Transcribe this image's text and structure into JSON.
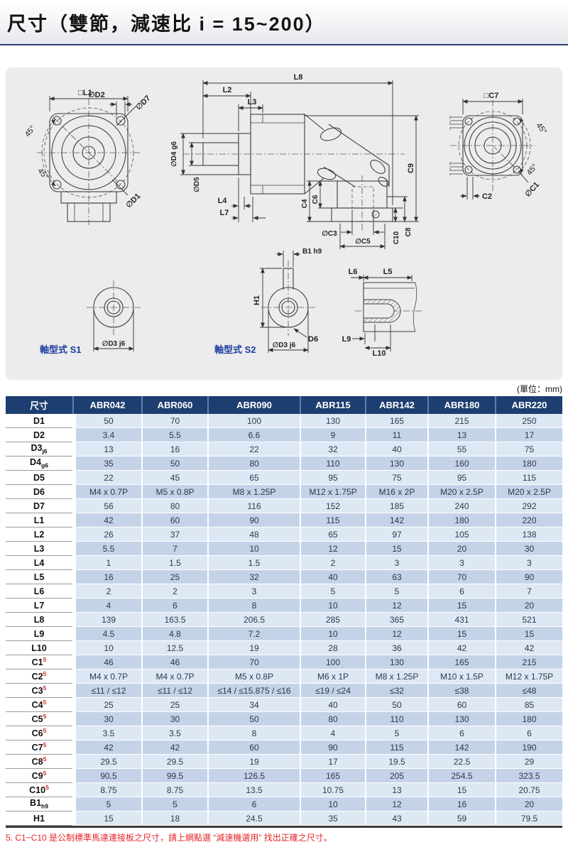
{
  "page": {
    "title": "尺寸（雙節，減速比 i = 15~200）",
    "unit_note": "(單位：mm)",
    "footnote": "5. C1~C10 是公制標準馬達連接板之尺寸，請上網點選 “減速機選用” 找出正確之尺寸。"
  },
  "drawing": {
    "captions": {
      "s1": "軸型式 S1",
      "s2": "軸型式 S2"
    },
    "labels": {
      "l1sq": "□L1",
      "d2": "∅D2",
      "d7": "∅D7",
      "a45a": "45°",
      "a45b": "45°",
      "d1": "∅D1",
      "l8": "L8",
      "l2": "L2",
      "l3": "L3",
      "d4": "∅D4 g6",
      "d5": "∅D5",
      "l4": "L4",
      "l7": "L7",
      "c4": "C4",
      "c6": "C6",
      "c3": "∅C3",
      "c5": "∅C5",
      "c9": "C9",
      "c10": "C10",
      "c8": "C8",
      "c7sq": "□C7",
      "a45c": "45°",
      "a45d": "45°",
      "c2": "C2",
      "c1": "∅C1",
      "b1": "B1 h9",
      "h1": "H1",
      "d6": "D6",
      "d3s1": "∅D3 j6",
      "d3s2": "∅D3 j6",
      "l6": "L6",
      "l5": "L5",
      "l9": "L9",
      "l10": "L10"
    }
  },
  "table": {
    "header": [
      "尺寸",
      "ABR042",
      "ABR060",
      "ABR090",
      "ABR115",
      "ABR142",
      "ABR180",
      "ABR220"
    ],
    "rows": [
      {
        "label": "D1",
        "values": [
          "50",
          "70",
          "100",
          "130",
          "165",
          "215",
          "250"
        ]
      },
      {
        "label": "D2",
        "values": [
          "3.4",
          "5.5",
          "6.6",
          "9",
          "11",
          "13",
          "17"
        ]
      },
      {
        "label": "D3",
        "sub": "j6",
        "values": [
          "13",
          "16",
          "22",
          "32",
          "40",
          "55",
          "75"
        ]
      },
      {
        "label": "D4",
        "sub": "g6",
        "values": [
          "35",
          "50",
          "80",
          "110",
          "130",
          "160",
          "180"
        ]
      },
      {
        "label": "D5",
        "values": [
          "22",
          "45",
          "65",
          "95",
          "75",
          "95",
          "115"
        ]
      },
      {
        "label": "D6",
        "values": [
          "M4 x 0.7P",
          "M5 x 0.8P",
          "M8 x 1.25P",
          "M12 x 1.75P",
          "M16 x 2P",
          "M20 x 2.5P",
          "M20 x 2.5P"
        ]
      },
      {
        "label": "D7",
        "values": [
          "56",
          "80",
          "116",
          "152",
          "185",
          "240",
          "292"
        ]
      },
      {
        "label": "L1",
        "values": [
          "42",
          "60",
          "90",
          "115",
          "142",
          "180",
          "220"
        ]
      },
      {
        "label": "L2",
        "values": [
          "26",
          "37",
          "48",
          "65",
          "97",
          "105",
          "138"
        ]
      },
      {
        "label": "L3",
        "values": [
          "5.5",
          "7",
          "10",
          "12",
          "15",
          "20",
          "30"
        ]
      },
      {
        "label": "L4",
        "values": [
          "1",
          "1.5",
          "1.5",
          "2",
          "3",
          "3",
          "3"
        ]
      },
      {
        "label": "L5",
        "values": [
          "16",
          "25",
          "32",
          "40",
          "63",
          "70",
          "90"
        ]
      },
      {
        "label": "L6",
        "values": [
          "2",
          "2",
          "3",
          "5",
          "5",
          "6",
          "7"
        ]
      },
      {
        "label": "L7",
        "values": [
          "4",
          "6",
          "8",
          "10",
          "12",
          "15",
          "20"
        ]
      },
      {
        "label": "L8",
        "values": [
          "139",
          "163.5",
          "206.5",
          "285",
          "365",
          "431",
          "521"
        ]
      },
      {
        "label": "L9",
        "values": [
          "4.5",
          "4.8",
          "7.2",
          "10",
          "12",
          "15",
          "15"
        ]
      },
      {
        "label": "L10",
        "values": [
          "10",
          "12.5",
          "19",
          "28",
          "36",
          "42",
          "42"
        ]
      },
      {
        "label": "C1",
        "sup": "5",
        "values": [
          "46",
          "46",
          "70",
          "100",
          "130",
          "165",
          "215"
        ]
      },
      {
        "label": "C2",
        "sup": "5",
        "values": [
          "M4 x 0.7P",
          "M4 x 0.7P",
          "M5 x 0.8P",
          "M6 x 1P",
          "M8 x 1.25P",
          "M10 x 1.5P",
          "M12 x 1.75P"
        ]
      },
      {
        "label": "C3",
        "sup": "5",
        "values": [
          "≤11 / ≤12",
          "≤11 / ≤12",
          "≤14 / ≤15.875 / ≤16",
          "≤19 / ≤24",
          "≤32",
          "≤38",
          "≤48"
        ]
      },
      {
        "label": "C4",
        "sup": "5",
        "values": [
          "25",
          "25",
          "34",
          "40",
          "50",
          "60",
          "85"
        ]
      },
      {
        "label": "C5",
        "sup": "5",
        "values": [
          "30",
          "30",
          "50",
          "80",
          "110",
          "130",
          "180"
        ]
      },
      {
        "label": "C6",
        "sup": "5",
        "values": [
          "3.5",
          "3.5",
          "8",
          "4",
          "5",
          "6",
          "6"
        ]
      },
      {
        "label": "C7",
        "sup": "5",
        "values": [
          "42",
          "42",
          "60",
          "90",
          "115",
          "142",
          "190"
        ]
      },
      {
        "label": "C8",
        "sup": "5",
        "values": [
          "29.5",
          "29.5",
          "19",
          "17",
          "19.5",
          "22.5",
          "29"
        ]
      },
      {
        "label": "C9",
        "sup": "5",
        "values": [
          "90.5",
          "99.5",
          "126.5",
          "165",
          "205",
          "254.5",
          "323.5"
        ]
      },
      {
        "label": "C10",
        "sup": "5",
        "values": [
          "8.75",
          "8.75",
          "13.5",
          "10.75",
          "13",
          "15",
          "20.75"
        ]
      },
      {
        "label": "B1",
        "sub": "h9",
        "values": [
          "5",
          "5",
          "6",
          "10",
          "12",
          "16",
          "20"
        ]
      },
      {
        "label": "H1",
        "values": [
          "15",
          "18",
          "24.5",
          "35",
          "43",
          "59",
          "79.5"
        ]
      }
    ]
  }
}
